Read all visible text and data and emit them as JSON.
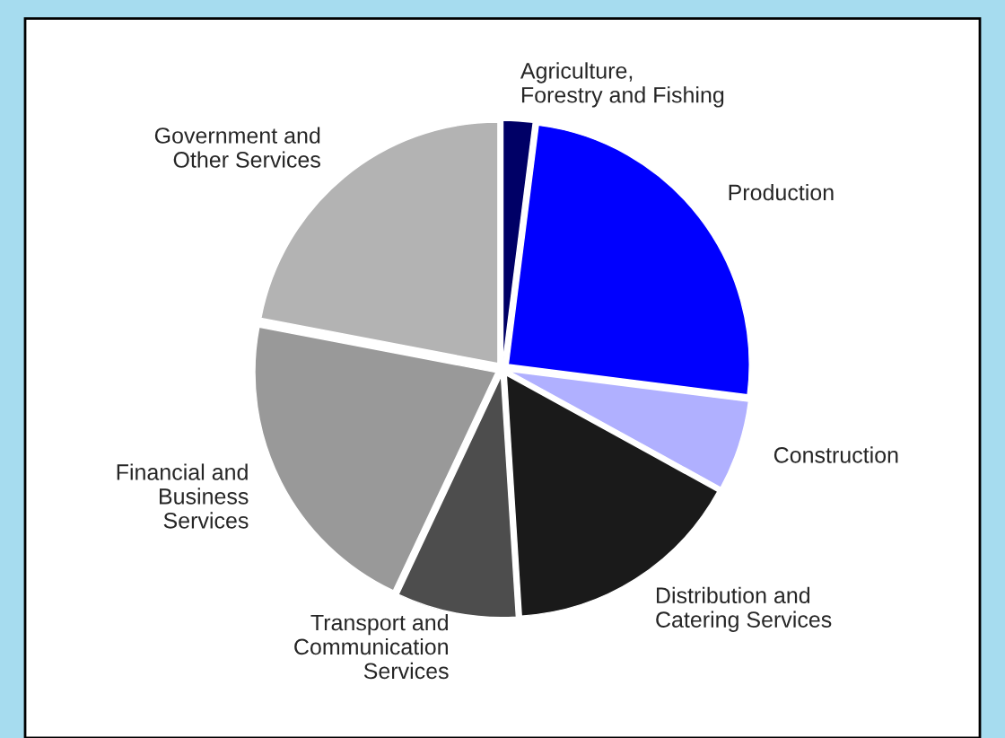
{
  "chart_data": {
    "type": "pie",
    "categories": [
      "Agriculture,\nForestry and Fishing",
      "Production",
      "Construction",
      "Distribution and\nCatering Services",
      "Transport and\nCommunication\nServices",
      "Financial and\nBusiness\nServices",
      "Government and\nOther Services"
    ],
    "values": [
      2,
      25,
      6,
      16,
      8,
      21,
      22
    ],
    "colors": [
      "#000066",
      "#0000ff",
      "#b0b0ff",
      "#1a1a1a",
      "#4d4d4d",
      "#999999",
      "#b3b3b3"
    ],
    "legend": false
  }
}
